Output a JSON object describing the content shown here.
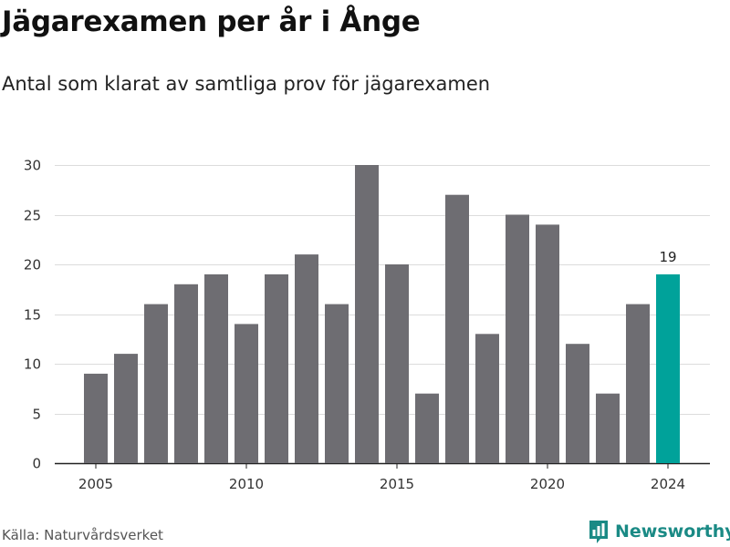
{
  "title": "Jägarexamen per år i Ånge",
  "subtitle": "Antal som klarat av samtliga prov för jägarexamen",
  "source": "Källa: Naturvårdsverket",
  "brand": "Newsworthy",
  "colors": {
    "bar": "#6e6d72",
    "highlight": "#00a29a",
    "grid": "#dcdcdc",
    "axis": "#222222",
    "brand": "#1a8a85"
  },
  "icons": {
    "brand_logo": "bar-chart-icon"
  },
  "chart_data": {
    "type": "bar",
    "title": "Jägarexamen per år i Ånge",
    "subtitle": "Antal som klarat av samtliga prov för jägarexamen",
    "x": [
      2005,
      2006,
      2007,
      2008,
      2009,
      2010,
      2011,
      2012,
      2013,
      2014,
      2015,
      2016,
      2017,
      2018,
      2019,
      2020,
      2021,
      2022,
      2023,
      2024
    ],
    "values": [
      9,
      11,
      16,
      18,
      19,
      14,
      19,
      21,
      16,
      30,
      20,
      7,
      27,
      13,
      25,
      24,
      12,
      7,
      16,
      19
    ],
    "highlight_index": 19,
    "data_labels": [
      {
        "index": 19,
        "text": "19"
      }
    ],
    "xticks": [
      2005,
      2010,
      2015,
      2020,
      2024
    ],
    "yticks": [
      0,
      5,
      10,
      15,
      20,
      25,
      30
    ],
    "ylim": [
      0,
      30
    ],
    "grid": "horizontal",
    "legend": "none",
    "xlabel": "",
    "ylabel": ""
  }
}
